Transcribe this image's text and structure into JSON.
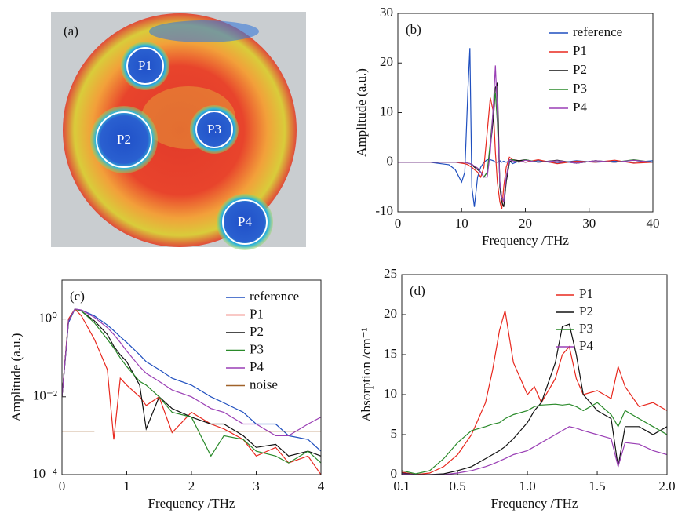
{
  "chart_data": [
    {
      "type": "image",
      "title": "(a)",
      "labels": [
        "P1",
        "P2",
        "P3",
        "P4"
      ]
    },
    {
      "type": "line",
      "title": "(b)",
      "xlabel": "Frequency /THz",
      "ylabel": "Amplitude (a.u.)",
      "xlim": [
        0,
        40
      ],
      "ylim": [
        -10,
        30
      ],
      "xticks": [
        0,
        10,
        20,
        30,
        40
      ],
      "yticks": [
        -10,
        0,
        10,
        20,
        30
      ],
      "log": false,
      "x": [
        0,
        5,
        8,
        9,
        10,
        10.5,
        11,
        11.3,
        11.6,
        12,
        12.5,
        13,
        13.5,
        14,
        14.5,
        15,
        15.3,
        15.6,
        16,
        16.3,
        16.6,
        17,
        17.5,
        18,
        19,
        20,
        22,
        25,
        28,
        31,
        34,
        37,
        40
      ],
      "series": [
        {
          "name": "reference",
          "color": "#1f4fbf",
          "values": [
            0,
            0,
            -0.5,
            -1.5,
            -4,
            -2,
            15,
            23,
            -5,
            -9,
            -3,
            -1,
            0,
            0.5,
            0.5,
            0.3,
            0,
            0,
            0.3,
            0,
            0.2,
            0,
            0.3,
            -0.3,
            0.2,
            0,
            0.3,
            -0.2,
            0.3,
            0,
            0.2,
            0,
            0.3
          ]
        },
        {
          "name": "P1",
          "color": "#e8281e",
          "values": [
            0,
            0,
            0,
            0,
            -0.2,
            -0.3,
            -0.5,
            -0.8,
            -1,
            -1.5,
            -2,
            -3,
            -1,
            6,
            13,
            10,
            2,
            -4,
            -8,
            -9.5,
            -5,
            -1,
            1,
            0.5,
            0.3,
            0,
            0.5,
            -0.3,
            0.2,
            0,
            0.4,
            -0.2,
            0
          ]
        },
        {
          "name": "P2",
          "color": "#111111",
          "values": [
            0,
            0,
            0,
            0,
            0,
            0,
            -0.2,
            -0.3,
            -0.5,
            -1,
            -1.5,
            -2,
            -3,
            -2,
            3,
            9,
            15,
            16,
            -5,
            -8,
            -9,
            -4,
            0,
            0.5,
            0.3,
            0.5,
            0,
            0.4,
            -0.2,
            0.3,
            0,
            0.4,
            0
          ]
        },
        {
          "name": "P3",
          "color": "#2a8a2a",
          "values": [
            0,
            0,
            0,
            0,
            0,
            0,
            -0.2,
            -0.3,
            -0.4,
            -0.8,
            -1.2,
            -2,
            -3,
            -2,
            4,
            11,
            14,
            8,
            -4,
            -7,
            -8,
            -3,
            0.5,
            0.5,
            0,
            0.5,
            0,
            0.3,
            -0.2,
            0.3,
            0,
            0.5,
            0
          ]
        },
        {
          "name": "P4",
          "color": "#9a3fb5",
          "values": [
            0,
            0,
            0,
            0,
            0,
            0,
            -0.2,
            -0.3,
            -0.4,
            -0.8,
            -1.2,
            -2,
            -3,
            -3,
            2,
            12,
            19.5,
            10,
            -4,
            -7,
            -8,
            -3,
            0.5,
            0.3,
            0,
            0.4,
            0,
            0.3,
            -0.2,
            0.3,
            0,
            0.4,
            0
          ]
        }
      ]
    },
    {
      "type": "line",
      "title": "(c)",
      "xlabel": "Frequency /THz",
      "ylabel": "Amplitude (a.u.)",
      "xlim": [
        0,
        4
      ],
      "ylim": [
        0.0001,
        10
      ],
      "xticks": [
        0,
        1,
        2,
        3,
        4
      ],
      "yticks": [
        {
          "value": 1,
          "label": "10⁰"
        },
        {
          "value": 0.01,
          "label": "10⁻²"
        },
        {
          "value": 0.0001,
          "label": "10⁻⁴"
        }
      ],
      "log": true,
      "x": [
        0,
        0.1,
        0.2,
        0.3,
        0.5,
        0.7,
        0.8,
        0.9,
        1.0,
        1.2,
        1.3,
        1.5,
        1.7,
        2.0,
        2.3,
        2.5,
        2.8,
        3.0,
        3.3,
        3.5,
        3.8,
        4.0
      ],
      "series": [
        {
          "name": "reference",
          "color": "#1f4fbf",
          "values": [
            0.01,
            0.8,
            1.8,
            1.7,
            1.2,
            0.7,
            0.5,
            0.35,
            0.25,
            0.12,
            0.08,
            0.05,
            0.03,
            0.02,
            0.01,
            0.007,
            0.004,
            0.002,
            0.002,
            0.001,
            0.0008,
            0.0004
          ]
        },
        {
          "name": "P1",
          "color": "#e8281e",
          "values": [
            0.01,
            1,
            1.8,
            1.2,
            0.3,
            0.05,
            0.0008,
            0.03,
            0.02,
            0.01,
            0.006,
            0.01,
            0.0012,
            0.004,
            0.002,
            0.0015,
            0.0008,
            0.0003,
            0.0005,
            0.0002,
            0.0003,
            0.0001
          ]
        },
        {
          "name": "P2",
          "color": "#111111",
          "values": [
            0.01,
            0.9,
            1.8,
            1.6,
            0.9,
            0.4,
            0.2,
            0.12,
            0.08,
            0.02,
            0.0015,
            0.01,
            0.005,
            0.003,
            0.002,
            0.002,
            0.001,
            0.0005,
            0.0006,
            0.0003,
            0.0004,
            0.0003
          ]
        },
        {
          "name": "P3",
          "color": "#2a8a2a",
          "values": [
            0.01,
            0.9,
            1.8,
            1.6,
            0.8,
            0.3,
            0.18,
            0.1,
            0.06,
            0.025,
            0.02,
            0.01,
            0.004,
            0.003,
            0.0003,
            0.001,
            0.0008,
            0.0004,
            0.0003,
            0.0002,
            0.0004,
            0.0002
          ]
        },
        {
          "name": "P4",
          "color": "#9a3fb5",
          "values": [
            0.01,
            0.9,
            1.8,
            1.7,
            1.1,
            0.6,
            0.4,
            0.25,
            0.15,
            0.06,
            0.04,
            0.025,
            0.015,
            0.01,
            0.005,
            0.004,
            0.002,
            0.002,
            0.001,
            0.001,
            0.002,
            0.003
          ]
        },
        {
          "name": "noise",
          "color": "#a0622a",
          "values": [
            0.0013,
            0.0013,
            0.0013,
            0.0013,
            0.0013,
            null,
            0.0013,
            0.0013,
            0.0013,
            0.0013,
            0.0013,
            0.0013,
            0.0013,
            0.0013,
            0.0013,
            0.0013,
            0.0013,
            0.0013,
            0.0013,
            0.0013,
            0.0013,
            0.0013
          ]
        }
      ]
    },
    {
      "type": "line",
      "title": "(d)",
      "xlabel": "Frequency /THz",
      "ylabel": "Absorption /cm⁻¹",
      "xlim": [
        0.1,
        2.0
      ],
      "ylim": [
        0,
        25
      ],
      "xticks": [
        0.1,
        0.5,
        {
          "value": 1,
          "label": "1.0"
        },
        1.5,
        {
          "value": 2,
          "label": "2.0"
        }
      ],
      "yticks": [
        0,
        5,
        10,
        15,
        20,
        25
      ],
      "log": false,
      "x": [
        0.1,
        0.2,
        0.3,
        0.4,
        0.5,
        0.6,
        0.7,
        0.75,
        0.8,
        0.84,
        0.9,
        1.0,
        1.05,
        1.1,
        1.2,
        1.25,
        1.3,
        1.35,
        1.4,
        1.5,
        1.6,
        1.65,
        1.7,
        1.8,
        1.9,
        2.0
      ],
      "series": [
        {
          "name": "P1",
          "color": "#e8281e",
          "values": [
            0.3,
            0,
            0.2,
            1,
            2.5,
            5,
            9,
            13,
            18,
            20.5,
            14,
            10,
            11,
            9,
            12,
            15,
            16,
            12,
            10,
            10.5,
            9.5,
            13.5,
            11,
            8.5,
            9,
            8
          ]
        },
        {
          "name": "P2",
          "color": "#111111",
          "values": [
            0.2,
            0,
            0,
            0.1,
            0.5,
            1,
            2,
            2.5,
            3,
            3.5,
            4.5,
            6.5,
            8,
            9,
            14,
            18.5,
            18.8,
            15,
            10,
            8,
            7,
            1,
            6,
            6,
            5,
            6
          ]
        },
        {
          "name": "P3",
          "color": "#2a8a2a",
          "values": [
            0.5,
            0.1,
            0.5,
            2,
            4,
            5.5,
            6,
            6.3,
            6.5,
            7,
            7.5,
            8,
            8.5,
            8.7,
            8.8,
            8.7,
            8.8,
            8.5,
            8,
            9,
            7.5,
            6,
            8,
            7,
            6,
            5
          ]
        },
        {
          "name": "P4",
          "color": "#9a3fb5",
          "values": [
            0.1,
            0,
            0,
            0,
            0.2,
            0.5,
            1,
            1.3,
            1.7,
            2,
            2.5,
            3,
            3.5,
            4,
            5,
            5.5,
            6,
            5.8,
            5.5,
            5,
            4.5,
            1,
            4,
            3.8,
            3,
            2.5
          ]
        }
      ]
    }
  ]
}
